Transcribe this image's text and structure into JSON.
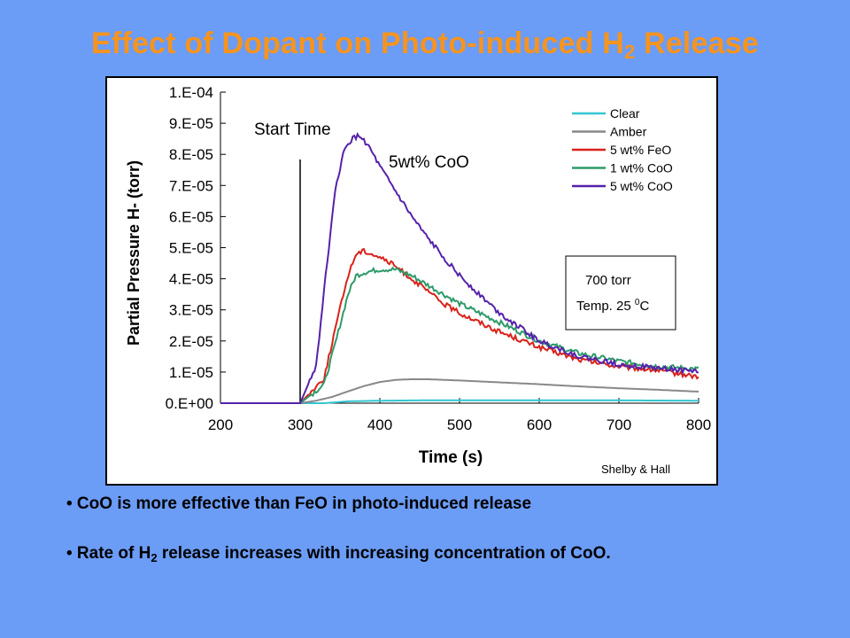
{
  "slide": {
    "title_main": "Effect of Dopant on Photo-induced H",
    "title_sub": "2",
    "title_end": " Release"
  },
  "bullets": [
    {
      "prefix": "• CoO is more effective than FeO in photo-induced release",
      "sub": "",
      "suffix": ""
    },
    {
      "prefix": "• Rate of H",
      "sub": "2",
      "suffix": " release increases with increasing concentration of CoO."
    }
  ],
  "chart_data": {
    "type": "line",
    "xlabel": "Time (s)",
    "ylabel": "Partial Pressure H- (torr)",
    "xlim": [
      200,
      800
    ],
    "ylim": [
      0,
      0.0001
    ],
    "x_ticks": [
      200,
      300,
      400,
      500,
      600,
      700,
      800
    ],
    "x_tick_labels": [
      "200",
      "300",
      "400",
      "500",
      "600",
      "700",
      "800"
    ],
    "y_ticks": [
      0,
      1e-05,
      2e-05,
      3e-05,
      4e-05,
      5e-05,
      6e-05,
      7e-05,
      8e-05,
      9e-05,
      0.0001
    ],
    "y_tick_labels": [
      "0.E+00",
      "1.E-05",
      "2.E-05",
      "3.E-05",
      "4.E-05",
      "5.E-05",
      "6.E-05",
      "7.E-05",
      "8.E-05",
      "9.E-05",
      "1.E-04"
    ],
    "grid": false,
    "legend_position": "top-right",
    "series": [
      {
        "name": "Clear",
        "color": "#33c6d1",
        "x": [
          200,
          300,
          330,
          360,
          400,
          450,
          500,
          600,
          700,
          800
        ],
        "y": [
          0,
          0,
          0,
          6e-07,
          8e-07,
          9e-07,
          9e-07,
          9e-07,
          9e-07,
          8e-07
        ]
      },
      {
        "name": "Amber",
        "color": "#888888",
        "x": [
          200,
          300,
          320,
          340,
          360,
          380,
          400,
          420,
          440,
          460,
          500,
          550,
          600,
          650,
          700,
          750,
          800
        ],
        "y": [
          0,
          0,
          8e-07,
          2e-06,
          3.8e-06,
          5.5e-06,
          6.8e-06,
          7.5e-06,
          7.7e-06,
          7.7e-06,
          7.3e-06,
          6.7e-06,
          6.1e-06,
          5.4e-06,
          4.8e-06,
          4.3e-06,
          3.7e-06
        ]
      },
      {
        "name": "5 wt% FeO",
        "color": "#d9221a",
        "x": [
          200,
          300,
          330,
          345,
          360,
          370,
          380,
          400,
          420,
          440,
          460,
          480,
          500,
          550,
          600,
          650,
          700,
          750,
          800
        ],
        "y": [
          0,
          0,
          8e-06,
          2.5e-05,
          4.1e-05,
          4.8e-05,
          4.9e-05,
          4.7e-05,
          4.4e-05,
          4e-05,
          3.6e-05,
          3.2e-05,
          2.9e-05,
          2.3e-05,
          1.8e-05,
          1.4e-05,
          1.18e-05,
          1.05e-05,
          8.5e-06
        ]
      },
      {
        "name": "1 wt% CoO",
        "color": "#2e9a6a",
        "x": [
          200,
          300,
          330,
          345,
          360,
          370,
          380,
          400,
          420,
          440,
          460,
          480,
          500,
          550,
          600,
          650,
          700,
          750,
          800
        ],
        "y": [
          0,
          0,
          6e-06,
          2e-05,
          3.5e-05,
          4.1e-05,
          4.2e-05,
          4.3e-05,
          4.3e-05,
          4.1e-05,
          3.8e-05,
          3.5e-05,
          3.2e-05,
          2.6e-05,
          2e-05,
          1.6e-05,
          1.35e-05,
          1.18e-05,
          1.1e-05
        ]
      },
      {
        "name": "5 wt% CoO",
        "color": "#5522aa",
        "x": [
          200,
          300,
          320,
          335,
          345,
          355,
          365,
          375,
          385,
          400,
          420,
          440,
          460,
          480,
          500,
          550,
          600,
          650,
          700,
          750,
          800
        ],
        "y": [
          0,
          0,
          1.2e-05,
          4.8e-05,
          7e-05,
          8.1e-05,
          8.5e-05,
          8.6e-05,
          8.3e-05,
          7.6e-05,
          6.8e-05,
          6e-05,
          5.3e-05,
          4.7e-05,
          4.1e-05,
          2.9e-05,
          2e-05,
          1.5e-05,
          1.25e-05,
          1.12e-05,
          1.02e-05
        ]
      }
    ],
    "annotations": {
      "start_time": {
        "text": "Start Time",
        "x": 300
      },
      "peak_label": "5wt% CoO",
      "conditions_line1": "700 torr",
      "conditions_line2_main": "Temp. 25 ",
      "conditions_line2_sup": "0",
      "conditions_line2_unit": "C",
      "credit": "Shelby & Hall"
    }
  }
}
